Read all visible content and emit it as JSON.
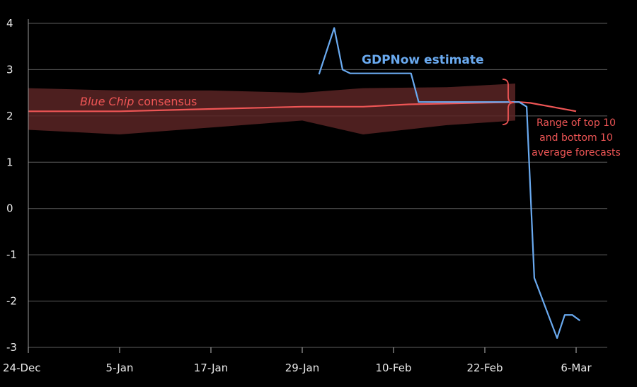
{
  "chart_data": {
    "type": "line",
    "title": "",
    "xlabel": "",
    "ylabel": "",
    "ylim": [
      -3,
      4
    ],
    "yticks": [
      4,
      3,
      2,
      1,
      0,
      -1,
      -2,
      -3
    ],
    "x_domain_days": [
      0,
      75
    ],
    "xticks": [
      {
        "label": "24-Dec",
        "day": 0
      },
      {
        "label": "5-Jan",
        "day": 12
      },
      {
        "label": "17-Jan",
        "day": 24
      },
      {
        "label": "29-Jan",
        "day": 36
      },
      {
        "label": "10-Feb",
        "day": 48
      },
      {
        "label": "22-Feb",
        "day": 60
      },
      {
        "label": "6-Mar",
        "day": 72
      }
    ],
    "series": [
      {
        "name": "GDPNow estimate",
        "color": "#6aaaf0",
        "points": [
          [
            38.2,
            2.9
          ],
          [
            40.2,
            3.9
          ],
          [
            41.3,
            3.0
          ],
          [
            42.3,
            2.92
          ],
          [
            50.3,
            2.92
          ],
          [
            51.3,
            2.3
          ],
          [
            64.5,
            2.3
          ],
          [
            65.5,
            2.2
          ],
          [
            66.5,
            -1.5
          ],
          [
            69.5,
            -2.8
          ],
          [
            70.5,
            -2.3
          ],
          [
            71.5,
            -2.3
          ],
          [
            72.5,
            -2.42
          ]
        ]
      },
      {
        "name": "Blue Chip consensus",
        "color": "#ee5555",
        "points": [
          [
            0,
            2.1
          ],
          [
            12,
            2.1
          ],
          [
            24,
            2.15
          ],
          [
            36,
            2.2
          ],
          [
            44,
            2.2
          ],
          [
            50,
            2.25
          ],
          [
            64.5,
            2.3
          ],
          [
            66,
            2.28
          ],
          [
            72,
            2.1
          ]
        ]
      }
    ],
    "range_band": {
      "name": "Range of top 10 and bottom 10 average forecasts",
      "color": "#5a2424",
      "upper": [
        [
          0,
          2.6
        ],
        [
          12,
          2.55
        ],
        [
          24,
          2.55
        ],
        [
          36,
          2.5
        ],
        [
          44,
          2.6
        ],
        [
          55,
          2.62
        ],
        [
          64,
          2.7
        ]
      ],
      "lower": [
        [
          64,
          1.9
        ],
        [
          55,
          1.8
        ],
        [
          44,
          1.6
        ],
        [
          36,
          1.9
        ],
        [
          24,
          1.75
        ],
        [
          12,
          1.6
        ],
        [
          0,
          1.7
        ]
      ]
    },
    "annotations": [
      {
        "text": "GDPNow estimate",
        "color": "#6aaaf0"
      },
      {
        "text_italic": "Blue Chip",
        "text": " consensus",
        "color": "#ee5555"
      },
      {
        "lines": [
          "Range of top 10",
          "and bottom 10",
          "average forecasts"
        ],
        "color": "#ee5555"
      }
    ]
  }
}
